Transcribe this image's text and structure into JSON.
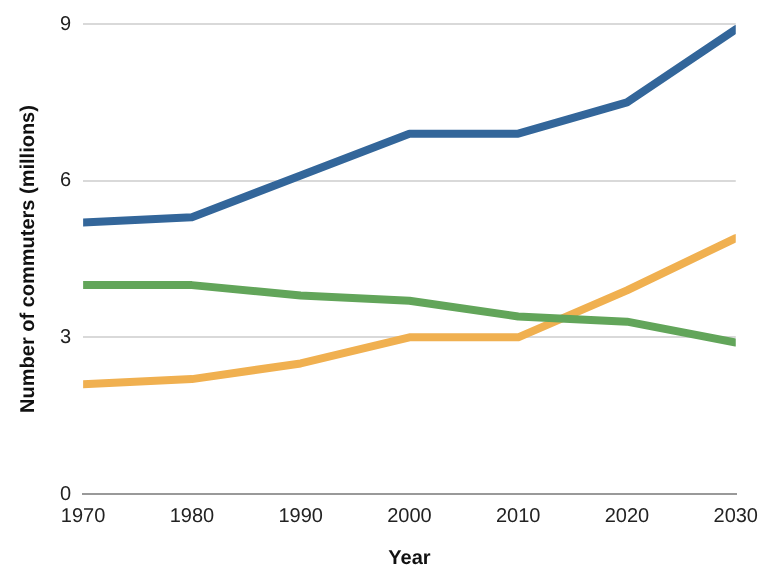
{
  "chart_data": {
    "type": "line",
    "xlabel": "Year",
    "ylabel": "Number of commuters (millions)",
    "x": [
      1970,
      1980,
      1990,
      2000,
      2010,
      2020,
      2030
    ],
    "series": [
      {
        "color": "#33669a",
        "values": [
          5.2,
          5.3,
          6.1,
          6.9,
          6.9,
          7.5,
          8.9
        ]
      },
      {
        "color": "#62a55a",
        "values": [
          4.0,
          4.0,
          3.8,
          3.7,
          3.4,
          3.3,
          2.9
        ]
      },
      {
        "color": "#f0b050",
        "values": [
          2.1,
          2.2,
          2.5,
          3.0,
          3.0,
          3.9,
          4.9
        ]
      }
    ],
    "xlim": [
      1970,
      2030
    ],
    "xticks": [
      1970,
      1980,
      1990,
      2000,
      2010,
      2020,
      2030
    ],
    "ylim": [
      0,
      9
    ],
    "yticks": [
      0,
      3,
      6,
      9
    ],
    "grid": "y",
    "legend": false,
    "marker": "none",
    "line_style": "solid"
  }
}
